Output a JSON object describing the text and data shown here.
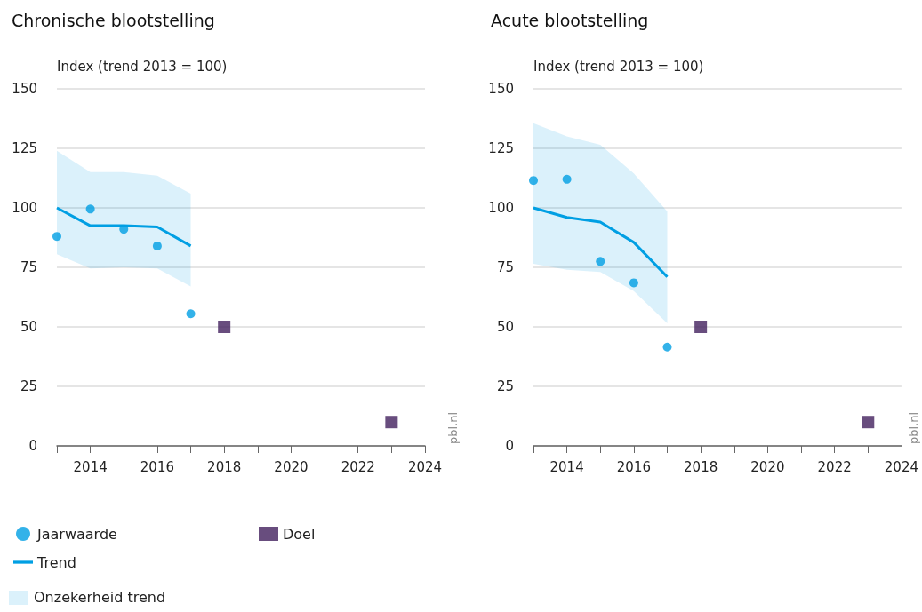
{
  "chart_data": [
    {
      "type": "scatter",
      "title": "Chronische blootstelling",
      "ylabel": "Index (trend 2013 = 100)",
      "xlim": [
        2013,
        2024
      ],
      "xticks": [
        {
          "value": 2013,
          "label": null
        },
        2014,
        {
          "value": 2015,
          "label": null
        },
        2016,
        {
          "value": 2017,
          "label": null
        },
        2018,
        {
          "value": 2019,
          "label": null
        },
        2020,
        {
          "value": 2021,
          "label": null
        },
        2022,
        {
          "value": 2023,
          "label": null
        },
        2024
      ],
      "ylim": [
        0,
        150
      ],
      "yticks": [
        0,
        25,
        50,
        75,
        100,
        125,
        150
      ],
      "grid": "y",
      "legend": "bottom left",
      "annotations": [
        "pbl.nl",
        "Onzekerheid trend"
      ],
      "series": [
        {
          "name": "Jaarwaarde",
          "type": "scatter",
          "marker": "circle",
          "color": "#009fe3",
          "x": [
            2013,
            2014,
            2015,
            2016,
            2017
          ],
          "values": [
            88,
            99.5,
            91,
            84,
            55.5
          ]
        },
        {
          "name": "Doel",
          "type": "scatter",
          "marker": "square",
          "color": "#42215e",
          "x": [
            2018,
            2023
          ],
          "values": [
            50,
            10
          ]
        },
        {
          "name": "Trend",
          "type": "line",
          "marker": "none",
          "color": "#009fe3",
          "x": [
            2013,
            2014,
            2015,
            2016,
            2017
          ],
          "values": [
            100,
            92.5,
            92.5,
            92,
            84
          ],
          "lower": [
            80.5,
            74.5,
            75,
            74.5,
            67
          ],
          "upper": [
            124,
            115,
            115,
            113.5,
            106
          ]
        }
      ]
    },
    {
      "type": "scatter",
      "title": "Acute blootstelling",
      "ylabel": "Index (trend 2013 = 100)",
      "xlim": [
        2013,
        2024
      ],
      "xticks": [
        {
          "value": 2013,
          "label": null
        },
        2014,
        {
          "value": 2015,
          "label": null
        },
        2016,
        {
          "value": 2017,
          "label": null
        },
        2018,
        {
          "value": 2019,
          "label": null
        },
        2020,
        {
          "value": 2021,
          "label": null
        },
        2022,
        {
          "value": 2023,
          "label": null
        },
        2024
      ],
      "ylim": [
        0,
        150
      ],
      "yticks": [
        0,
        25,
        50,
        75,
        100,
        125,
        150
      ],
      "grid": "y",
      "annotations": [
        "pbl.nl"
      ],
      "series": [
        {
          "type": "scatter",
          "marker": "circle",
          "color": "#009fe3",
          "x": [
            2013,
            2014,
            2015,
            2016,
            2017
          ],
          "values": [
            111.5,
            112,
            77.5,
            68.5,
            41.5
          ]
        },
        {
          "type": "scatter",
          "marker": "square",
          "color": "#42215e",
          "x": [
            2018,
            2023
          ],
          "values": [
            50,
            10
          ]
        },
        {
          "type": "line",
          "marker": "none",
          "color": "#009fe3",
          "x": [
            2013,
            2014,
            2015,
            2016,
            2017
          ],
          "values": [
            100,
            96,
            94,
            85.5,
            71
          ],
          "lower": [
            76.5,
            74,
            73,
            65,
            51.5
          ],
          "upper": [
            135.5,
            130,
            126.5,
            114.5,
            98.5
          ]
        }
      ]
    }
  ]
}
